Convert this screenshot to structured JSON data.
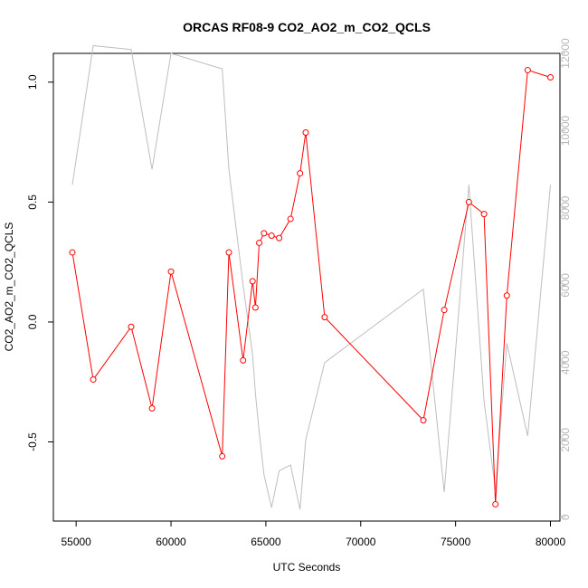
{
  "chart_data": {
    "type": "line",
    "title": "ORCAS RF08-9 CO2_AO2_m_CO2_QCLS",
    "xlabel": "UTC Seconds",
    "ylabel": "CO2_AO2_m_CO2_QCLS",
    "xlim": [
      53800,
      80500
    ],
    "ylim": [
      -0.83,
      1.12
    ],
    "y2lim": [
      -100,
      12000
    ],
    "x_ticks": [
      55000,
      60000,
      65000,
      70000,
      75000,
      80000
    ],
    "y_ticks": [
      -0.5,
      0.0,
      0.5,
      1.0
    ],
    "y2_ticks": [
      0,
      2000,
      4000,
      6000,
      8000,
      10000,
      12000
    ],
    "colors": {
      "primary": "#ff0000",
      "secondary": "#bebebe",
      "axis": "#000000"
    },
    "series": [
      {
        "role": "primary",
        "axis": "left",
        "color": "#ff0000",
        "markers": "open-circle",
        "x": [
          54800,
          55900,
          57900,
          59000,
          60000,
          62700,
          63050,
          63800,
          64300,
          64450,
          64650,
          64900,
          65300,
          65700,
          66300,
          66800,
          67100,
          68100,
          73300,
          74400,
          75700,
          76500,
          77100,
          77700,
          78800,
          80000
        ],
        "y": [
          0.29,
          -0.24,
          -0.02,
          -0.36,
          0.21,
          -0.56,
          0.29,
          -0.16,
          0.17,
          0.06,
          0.33,
          0.37,
          0.36,
          0.35,
          0.43,
          0.62,
          0.79,
          0.02,
          -0.41,
          0.05,
          0.5,
          0.45,
          -0.76,
          0.11,
          1.05,
          1.02
        ]
      },
      {
        "role": "secondary",
        "axis": "right",
        "color": "#bebebe",
        "markers": "none",
        "x": [
          54800,
          55900,
          57900,
          59000,
          60000,
          62700,
          63050,
          63800,
          64300,
          64450,
          64650,
          64900,
          65300,
          65700,
          66300,
          66800,
          67100,
          68100,
          73300,
          74400,
          75700,
          76500,
          77100,
          77700,
          78800,
          80000
        ],
        "y": [
          8600,
          12200,
          12100,
          9000,
          12000,
          11600,
          9000,
          6000,
          4200,
          3200,
          2200,
          1100,
          250,
          1200,
          1350,
          200,
          2000,
          4000,
          5900,
          650,
          8600,
          3000,
          700,
          4500,
          2100,
          8600
        ]
      }
    ]
  }
}
